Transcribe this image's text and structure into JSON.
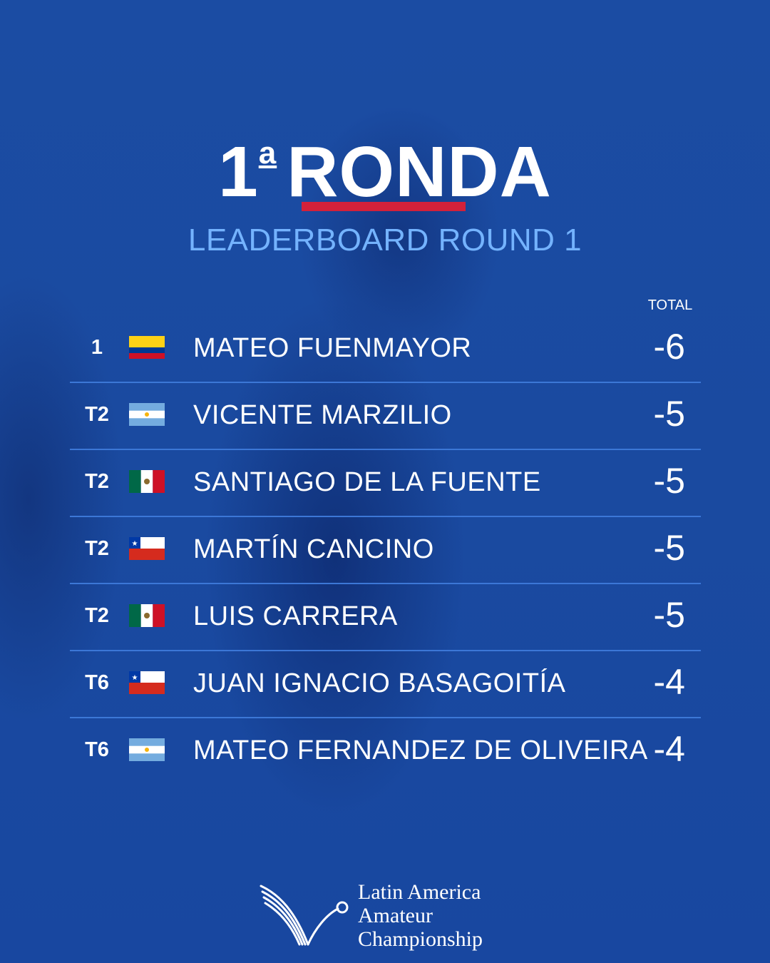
{
  "header": {
    "title_number": "1",
    "title_ordinal": "a",
    "title_word": "RONDA",
    "subtitle": "LEADERBOARD ROUND 1",
    "total_label": "TOTAL"
  },
  "leaderboard": [
    {
      "position": "1",
      "flag": "colombia-flag",
      "name": "MATEO FUENMAYOR",
      "total": "-6"
    },
    {
      "position": "T2",
      "flag": "argentina-flag",
      "name": "VICENTE MARZILIO",
      "total": "-5"
    },
    {
      "position": "T2",
      "flag": "mexico-flag",
      "name": "SANTIAGO DE LA FUENTE",
      "total": "-5"
    },
    {
      "position": "T2",
      "flag": "chile-flag",
      "name": "MARTÍN CANCINO",
      "total": "-5"
    },
    {
      "position": "T2",
      "flag": "mexico-flag",
      "name": "LUIS CARRERA",
      "total": "-5"
    },
    {
      "position": "T6",
      "flag": "chile-flag",
      "name": "JUAN IGNACIO BASAGOITÍA",
      "total": "-4"
    },
    {
      "position": "T6",
      "flag": "argentina-flag",
      "name": "MATEO FERNANDEZ DE OLIVEIRA",
      "total": "-4"
    }
  ],
  "logo": {
    "line1": "Latin America",
    "line2": "Amateur",
    "line3": "Championship"
  },
  "colors": {
    "background": "#1a4aa0",
    "accent_red": "#d3213a",
    "subtitle_blue": "#74b3ff",
    "divider": "#3c77d6"
  }
}
